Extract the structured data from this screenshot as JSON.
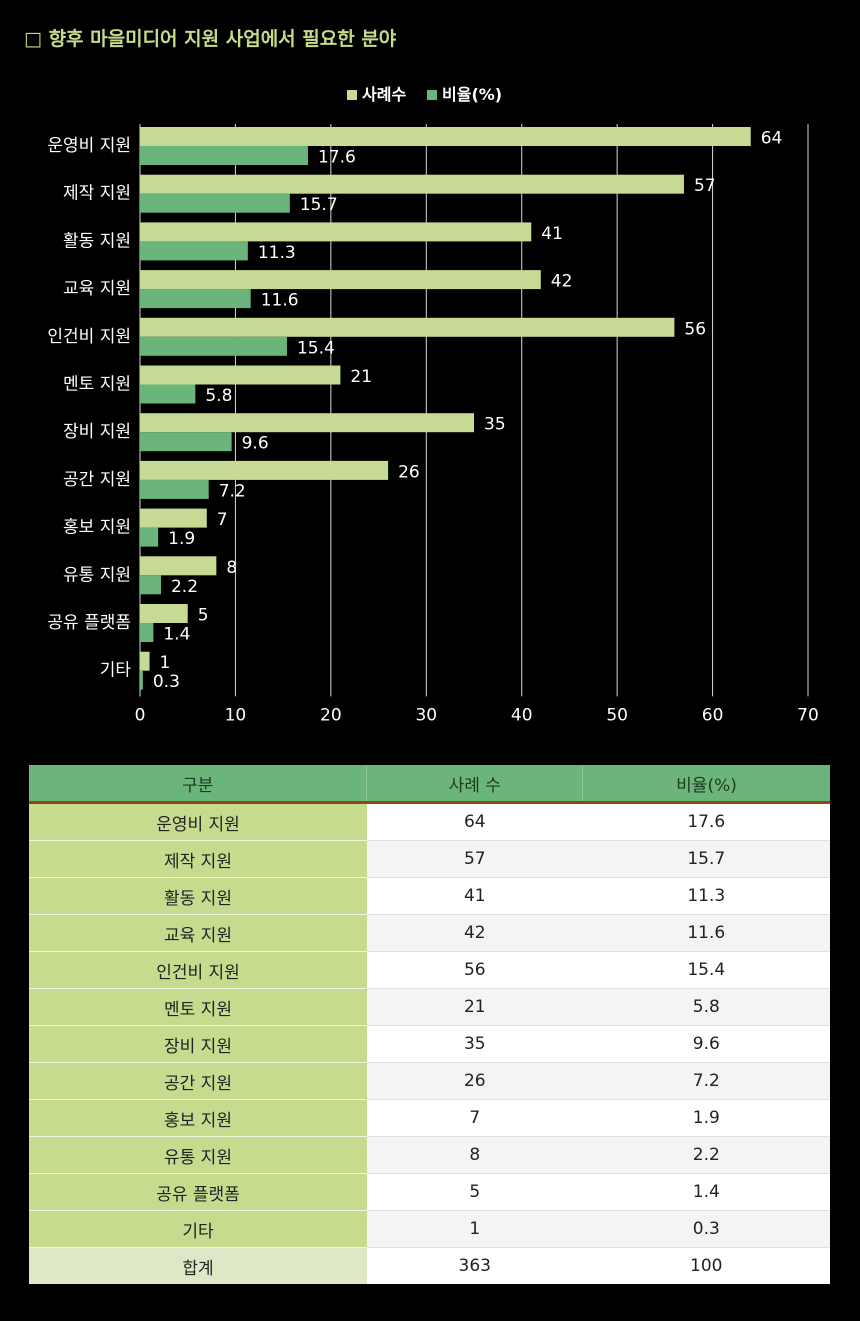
{
  "title": "□ 향후 마을미디어 지원 사업에서 필요한 분야",
  "colors": {
    "count": "#c6da93",
    "ratio": "#6bb57c",
    "title": "#c5dc8a"
  },
  "chart_data": {
    "type": "bar",
    "orientation": "horizontal",
    "categories": [
      "운영비 지원",
      "제작 지원",
      "활동 지원",
      "교육 지원",
      "인건비 지원",
      "멘토 지원",
      "장비 지원",
      "공간 지원",
      "홍보 지원",
      "유통 지원",
      "공유 플랫폼",
      "기타"
    ],
    "series": [
      {
        "name": "사례수",
        "values": [
          64,
          57,
          41,
          42,
          56,
          21,
          35,
          26,
          7,
          8,
          5,
          1
        ]
      },
      {
        "name": "비율(%)",
        "values": [
          17.6,
          15.7,
          11.3,
          11.6,
          15.4,
          5.8,
          9.6,
          7.2,
          1.9,
          2.2,
          1.4,
          0.3
        ]
      }
    ],
    "xlim": [
      0,
      70
    ],
    "xticks": [
      0,
      10,
      20,
      30,
      40,
      50,
      60,
      70
    ],
    "grid": true,
    "legend_position": "top"
  },
  "table": {
    "headers": [
      "구분",
      "사례 수",
      "비율(%)"
    ],
    "rows": [
      [
        "운영비 지원",
        "64",
        "17.6"
      ],
      [
        "제작 지원",
        "57",
        "15.7"
      ],
      [
        "활동 지원",
        "41",
        "11.3"
      ],
      [
        "교육 지원",
        "42",
        "11.6"
      ],
      [
        "인건비 지원",
        "56",
        "15.4"
      ],
      [
        "멘토 지원",
        "21",
        "5.8"
      ],
      [
        "장비 지원",
        "35",
        "9.6"
      ],
      [
        "공간 지원",
        "26",
        "7.2"
      ],
      [
        "홍보 지원",
        "7",
        "1.9"
      ],
      [
        "유통 지원",
        "8",
        "2.2"
      ],
      [
        "공유 플랫폼",
        "5",
        "1.4"
      ],
      [
        "기타",
        "1",
        "0.3"
      ]
    ],
    "total": [
      "합계",
      "363",
      "100"
    ]
  }
}
